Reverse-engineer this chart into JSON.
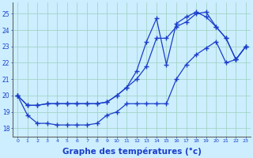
{
  "bg_color": "#cceeff",
  "line_color": "#1a3ec8",
  "xlabel": "Graphe des températures (°c)",
  "xlabel_fontsize": 7.5,
  "ylim": [
    17.5,
    25.7
  ],
  "xlim": [
    -0.5,
    23.5
  ],
  "yticks": [
    18,
    19,
    20,
    21,
    22,
    23,
    24,
    25
  ],
  "xticks": [
    0,
    1,
    2,
    3,
    4,
    5,
    6,
    7,
    8,
    9,
    10,
    11,
    12,
    13,
    14,
    15,
    16,
    17,
    18,
    19,
    20,
    21,
    22,
    23
  ],
  "series1_x": [
    0,
    1,
    2,
    3,
    4,
    5,
    6,
    7,
    8,
    9,
    10,
    11,
    12,
    13,
    14,
    15,
    16,
    17,
    18,
    19,
    20,
    21,
    22,
    23
  ],
  "series1_y": [
    20.0,
    19.4,
    19.4,
    19.5,
    19.5,
    19.5,
    19.5,
    19.5,
    19.5,
    19.6,
    20.0,
    20.5,
    21.0,
    21.8,
    23.5,
    23.5,
    24.2,
    24.5,
    25.0,
    25.1,
    24.2,
    23.5,
    22.2,
    23.0
  ],
  "series2_x": [
    0,
    1,
    2,
    3,
    4,
    5,
    6,
    7,
    8,
    9,
    10,
    11,
    12,
    13,
    14,
    15,
    16,
    17,
    18,
    19,
    20,
    21,
    22,
    23
  ],
  "series2_y": [
    20.0,
    19.4,
    19.4,
    19.5,
    19.5,
    19.5,
    19.5,
    19.5,
    19.5,
    19.6,
    20.0,
    20.5,
    21.5,
    23.3,
    24.7,
    21.9,
    24.4,
    24.8,
    25.1,
    24.8,
    24.2,
    23.5,
    22.2,
    23.0
  ],
  "series3_x": [
    0,
    1,
    2,
    3,
    4,
    5,
    6,
    7,
    8,
    9,
    10,
    11,
    12,
    13,
    14,
    15,
    16,
    17,
    18,
    19,
    20,
    21,
    22,
    23
  ],
  "series3_y": [
    20.0,
    18.8,
    18.3,
    18.3,
    18.2,
    18.2,
    18.2,
    18.2,
    18.3,
    18.8,
    19.0,
    19.5,
    19.5,
    19.5,
    19.5,
    19.5,
    21.0,
    21.9,
    22.5,
    22.9,
    23.3,
    22.0,
    22.2,
    23.0
  ]
}
